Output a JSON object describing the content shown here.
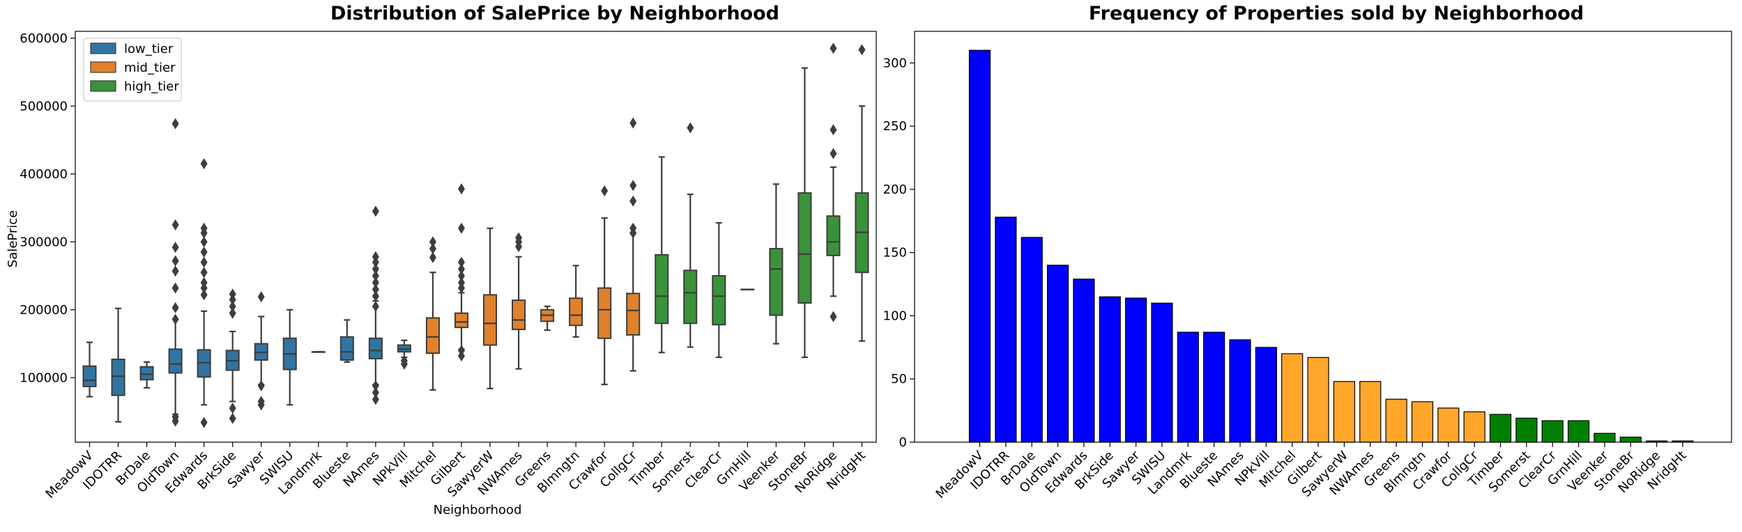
{
  "colors": {
    "low_tier": "#3274a1",
    "mid_tier": "#e1812c",
    "high_tier": "#3a923a",
    "bar_low": "#0000ff",
    "bar_mid": "#ffa62b",
    "bar_high": "#008000",
    "whisker": "#3d3d3d"
  },
  "chart_data": [
    {
      "type": "box",
      "title": "Distribution of SalePrice by Neighborhood",
      "xlabel": "Neighborhood",
      "ylabel": "SalePrice",
      "ylim": [
        5000,
        610000
      ],
      "yticks": [
        100000,
        200000,
        300000,
        400000,
        500000,
        600000
      ],
      "ytick_labels": [
        "100000",
        "200000",
        "300000",
        "400000",
        "500000",
        "600000"
      ],
      "legend": {
        "placement": "top-left",
        "entries": [
          "low_tier",
          "mid_tier",
          "high_tier"
        ]
      },
      "categories": [
        "MeadowV",
        "IDOTRR",
        "BrDale",
        "OldTown",
        "Edwards",
        "BrkSide",
        "Sawyer",
        "SWISU",
        "Landmrk",
        "Blueste",
        "NAmes",
        "NPkVill",
        "Mitchel",
        "Gilbert",
        "SawyerW",
        "NWAmes",
        "Greens",
        "Blmngtn",
        "Crawfor",
        "CollgCr",
        "Timber",
        "Somerst",
        "ClearCr",
        "GrnHill",
        "Veenker",
        "StoneBr",
        "NoRidge",
        "NridgHt"
      ],
      "boxes": [
        {
          "tier": "low_tier",
          "whislo": 72000,
          "q1": 87000,
          "med": 96000,
          "q3": 117000,
          "whishi": 152000,
          "fliers": []
        },
        {
          "tier": "low_tier",
          "whislo": 35000,
          "q1": 74000,
          "med": 102000,
          "q3": 127000,
          "whishi": 202000,
          "fliers": []
        },
        {
          "tier": "low_tier",
          "whislo": 85000,
          "q1": 97000,
          "med": 105000,
          "q3": 116000,
          "whishi": 123000,
          "fliers": []
        },
        {
          "tier": "low_tier",
          "whislo": 46000,
          "q1": 107000,
          "med": 120000,
          "q3": 142000,
          "whishi": 186000,
          "fliers": [
            474000,
            325000,
            292000,
            272000,
            257000,
            232000,
            203000,
            186000,
            42000,
            36000
          ]
        },
        {
          "tier": "low_tier",
          "whislo": 60000,
          "q1": 101000,
          "med": 122000,
          "q3": 141000,
          "whishi": 198000,
          "fliers": [
            415000,
            320000,
            313000,
            300000,
            285000,
            270000,
            255000,
            240000,
            232000,
            222000,
            34000
          ]
        },
        {
          "tier": "low_tier",
          "whislo": 65000,
          "q1": 111000,
          "med": 125000,
          "q3": 140000,
          "whishi": 168000,
          "fliers": [
            223000,
            215000,
            205000,
            195000,
            55000,
            40000
          ]
        },
        {
          "tier": "low_tier",
          "whislo": 90000,
          "q1": 126000,
          "med": 137000,
          "q3": 150000,
          "whishi": 190000,
          "fliers": [
            219000,
            88000,
            65000,
            60000
          ]
        },
        {
          "tier": "low_tier",
          "whislo": 60000,
          "q1": 112000,
          "med": 135000,
          "q3": 158000,
          "whishi": 200000,
          "fliers": []
        },
        {
          "tier": "low_tier",
          "whislo": 138000,
          "q1": 138000,
          "med": 138000,
          "q3": 138000,
          "whishi": 138000,
          "fliers": []
        },
        {
          "tier": "low_tier",
          "whislo": 123000,
          "q1": 126000,
          "med": 138000,
          "q3": 160000,
          "whishi": 185000,
          "fliers": []
        },
        {
          "tier": "low_tier",
          "whislo": 90000,
          "q1": 128000,
          "med": 140000,
          "q3": 158000,
          "whishi": 213000,
          "fliers": [
            345000,
            278000,
            270000,
            260000,
            250000,
            240000,
            230000,
            220000,
            205000,
            88000,
            78000,
            68000
          ]
        },
        {
          "tier": "low_tier",
          "whislo": 130000,
          "q1": 138000,
          "med": 142000,
          "q3": 148000,
          "whishi": 155000,
          "fliers": [
            125000,
            120000
          ]
        },
        {
          "tier": "mid_tier",
          "whislo": 82000,
          "q1": 136000,
          "med": 160000,
          "q3": 188000,
          "whishi": 255000,
          "fliers": [
            300000,
            290000,
            277000
          ]
        },
        {
          "tier": "mid_tier",
          "whislo": 142000,
          "q1": 174000,
          "med": 182000,
          "q3": 195000,
          "whishi": 225000,
          "fliers": [
            378000,
            320000,
            270000,
            260000,
            250000,
            240000,
            232000,
            140000,
            132000
          ]
        },
        {
          "tier": "mid_tier",
          "whislo": 84000,
          "q1": 148000,
          "med": 180000,
          "q3": 222000,
          "whishi": 320000,
          "fliers": []
        },
        {
          "tier": "mid_tier",
          "whislo": 113000,
          "q1": 171000,
          "med": 185000,
          "q3": 214000,
          "whishi": 278000,
          "fliers": [
            306000,
            300000,
            293000
          ]
        },
        {
          "tier": "mid_tier",
          "whislo": 170000,
          "q1": 183000,
          "med": 192000,
          "q3": 200000,
          "whishi": 205000,
          "fliers": []
        },
        {
          "tier": "mid_tier",
          "whislo": 160000,
          "q1": 177000,
          "med": 192000,
          "q3": 217000,
          "whishi": 265000,
          "fliers": []
        },
        {
          "tier": "mid_tier",
          "whislo": 90000,
          "q1": 158000,
          "med": 200000,
          "q3": 232000,
          "whishi": 335000,
          "fliers": [
            375000
          ]
        },
        {
          "tier": "mid_tier",
          "whislo": 110000,
          "q1": 163000,
          "med": 199000,
          "q3": 224000,
          "whishi": 312000,
          "fliers": [
            475000,
            383000,
            360000,
            320000,
            313000
          ]
        },
        {
          "tier": "high_tier",
          "whislo": 137000,
          "q1": 180000,
          "med": 220000,
          "q3": 281000,
          "whishi": 425000,
          "fliers": []
        },
        {
          "tier": "high_tier",
          "whislo": 145000,
          "q1": 180000,
          "med": 225000,
          "q3": 258000,
          "whishi": 370000,
          "fliers": [
            468000
          ]
        },
        {
          "tier": "high_tier",
          "whislo": 130000,
          "q1": 178000,
          "med": 220000,
          "q3": 250000,
          "whishi": 328000,
          "fliers": []
        },
        {
          "tier": "high_tier",
          "whislo": 230000,
          "q1": 230000,
          "med": 230000,
          "q3": 230000,
          "whishi": 230000,
          "fliers": []
        },
        {
          "tier": "high_tier",
          "whislo": 150000,
          "q1": 192000,
          "med": 260000,
          "q3": 290000,
          "whishi": 385000,
          "fliers": []
        },
        {
          "tier": "high_tier",
          "whislo": 130000,
          "q1": 210000,
          "med": 282000,
          "q3": 372000,
          "whishi": 556000,
          "fliers": []
        },
        {
          "tier": "high_tier",
          "whislo": 220000,
          "q1": 280000,
          "med": 300000,
          "q3": 338000,
          "whishi": 410000,
          "fliers": [
            585000,
            465000,
            430000,
            190000
          ]
        },
        {
          "tier": "high_tier",
          "whislo": 154000,
          "q1": 255000,
          "med": 314000,
          "q3": 372000,
          "whishi": 500000,
          "fliers": [
            583000
          ]
        }
      ]
    },
    {
      "type": "bar",
      "title": "Frequency of Properties sold by Neighborhood",
      "ylim": [
        0,
        325
      ],
      "yticks": [
        0,
        50,
        100,
        150,
        200,
        250,
        300
      ],
      "ytick_labels": [
        "0",
        "50",
        "100",
        "150",
        "200",
        "250",
        "300"
      ],
      "categories": [
        "MeadowV",
        "IDOTRR",
        "BrDale",
        "OldTown",
        "Edwards",
        "BrkSide",
        "Sawyer",
        "SWISU",
        "Landmrk",
        "Blueste",
        "NAmes",
        "NPkVill",
        "Mitchel",
        "Gilbert",
        "SawyerW",
        "NWAmes",
        "Greens",
        "Blmngtn",
        "Crawfor",
        "CollgCr",
        "Timber",
        "Somerst",
        "ClearCr",
        "GrnHill",
        "Veenker",
        "StoneBr",
        "NoRidge",
        "NridgHt"
      ],
      "values": [
        310,
        178,
        162,
        140,
        129,
        115,
        114,
        110,
        87,
        87,
        81,
        75,
        70,
        67,
        48,
        48,
        34,
        32,
        27,
        24,
        22,
        19,
        17,
        17,
        7,
        4,
        1,
        1
      ],
      "tiers": [
        "low_tier",
        "low_tier",
        "low_tier",
        "low_tier",
        "low_tier",
        "low_tier",
        "low_tier",
        "low_tier",
        "low_tier",
        "low_tier",
        "low_tier",
        "low_tier",
        "mid_tier",
        "mid_tier",
        "mid_tier",
        "mid_tier",
        "mid_tier",
        "mid_tier",
        "mid_tier",
        "mid_tier",
        "high_tier",
        "high_tier",
        "high_tier",
        "high_tier",
        "high_tier",
        "high_tier",
        "high_tier",
        "high_tier"
      ]
    }
  ]
}
